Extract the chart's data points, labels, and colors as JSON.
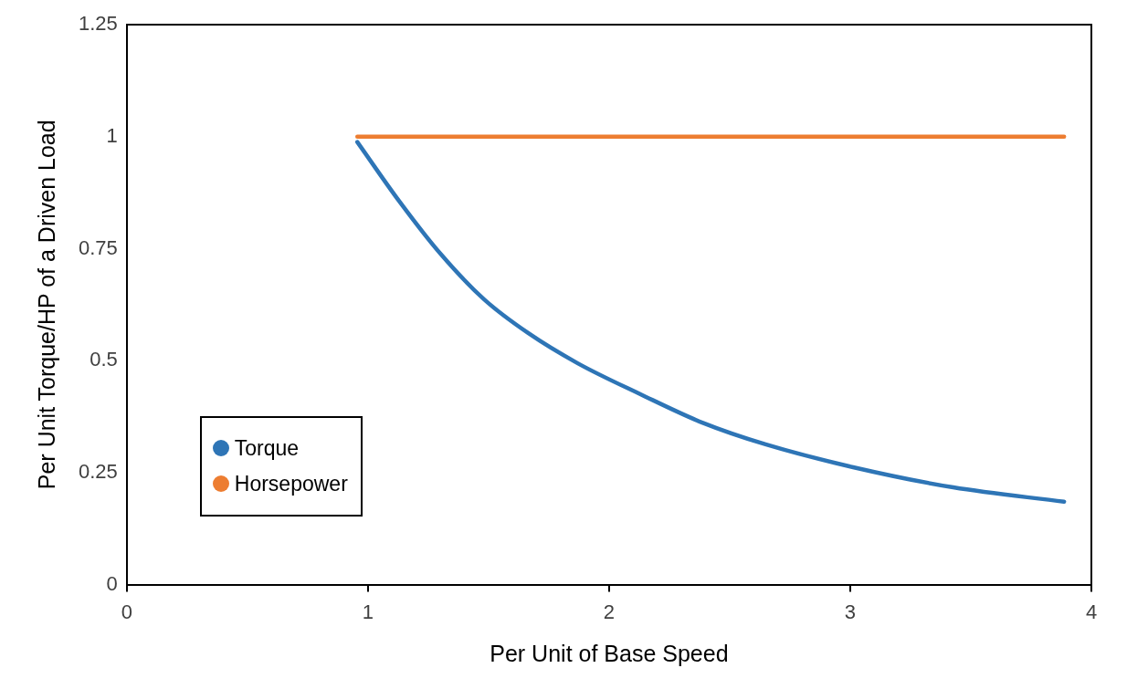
{
  "chart_data": {
    "type": "line",
    "xlabel": "Per Unit of Base Speed",
    "ylabel": "Per Unit Torque/HP of a Driven Load",
    "series": [
      {
        "name": "Torque",
        "color": "#2e75b6",
        "x": [
          0.956,
          1.131,
          1.3,
          1.481,
          1.663,
          1.87,
          2.13,
          2.389,
          2.649,
          3.012,
          3.427,
          3.887
        ],
        "values": [
          0.988,
          0.855,
          0.739,
          0.637,
          0.562,
          0.494,
          0.425,
          0.361,
          0.313,
          0.262,
          0.217,
          0.185
        ]
      },
      {
        "name": "Horsepower",
        "color": "#ed7d31",
        "x": [
          0.956,
          3.887
        ],
        "values": [
          1,
          1
        ]
      }
    ],
    "xlim": [
      0,
      4
    ],
    "xticks": [
      0,
      1,
      2,
      3,
      4
    ],
    "ylim": [
      0,
      1.25
    ],
    "yticks": [
      0,
      0.25,
      0.5,
      0.75,
      1,
      1.25
    ],
    "grid": false,
    "legend": "bottom left",
    "marker": "none",
    "line_style": "solid"
  }
}
